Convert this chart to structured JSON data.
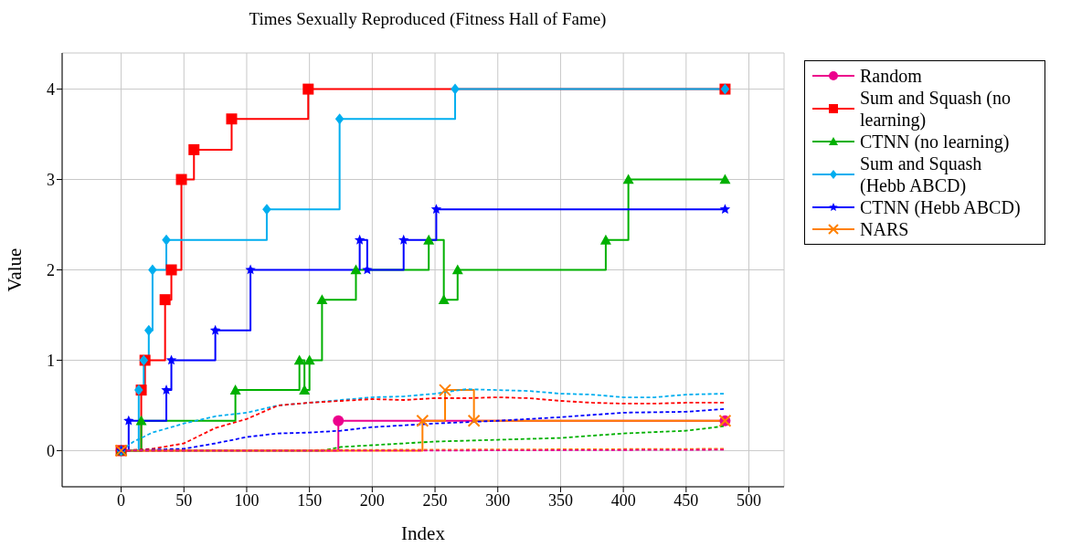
{
  "chart_data": {
    "type": "step",
    "title": "Times Sexually Reproduced (Fitness Hall of Fame)",
    "xlabel": "Index",
    "ylabel": "Value",
    "xlim": [
      -47,
      528
    ],
    "ylim": [
      -0.4,
      4.4
    ],
    "xticks": [
      0,
      50,
      100,
      150,
      200,
      250,
      300,
      350,
      400,
      450,
      500
    ],
    "yticks": [
      0,
      1,
      2,
      3,
      4
    ],
    "grid": true,
    "legend": "right",
    "series": [
      {
        "name": "Random",
        "color": "#ec008c",
        "marker": "circle",
        "x": [
          0,
          173,
          481
        ],
        "values": [
          0,
          0.33,
          0.33
        ]
      },
      {
        "name": "Sum and Squash (no learning)",
        "color": "#ff0000",
        "marker": "square",
        "x": [
          0,
          16,
          19,
          35,
          40,
          48,
          58,
          88,
          149,
          481
        ],
        "values": [
          0,
          0.67,
          1,
          1.67,
          2,
          3,
          3.33,
          3.67,
          4,
          4
        ]
      },
      {
        "name": "CTNN (no learning)",
        "color": "#00b000",
        "marker": "triangle",
        "x": [
          0,
          16,
          91,
          142,
          146,
          150,
          160,
          187,
          245,
          257,
          268,
          386,
          404,
          481
        ],
        "values": [
          0,
          0.33,
          0.67,
          1,
          0.67,
          1,
          1.67,
          2,
          2.33,
          1.67,
          2,
          2.33,
          3,
          3
        ]
      },
      {
        "name": "Sum and Squash (Hebb ABCD)",
        "color": "#00aeef",
        "marker": "diamond",
        "x": [
          0,
          14,
          18,
          22,
          25,
          36,
          116,
          174,
          266,
          481
        ],
        "values": [
          0,
          0.67,
          1,
          1.33,
          2,
          2.33,
          2.67,
          3.67,
          4,
          4
        ]
      },
      {
        "name": "CTNN (Hebb ABCD)",
        "color": "#0000ff",
        "marker": "star",
        "x": [
          0,
          6,
          36,
          40,
          75,
          103,
          190,
          196,
          225,
          251,
          481
        ],
        "values": [
          0,
          0.33,
          0.67,
          1,
          1.33,
          2,
          2.33,
          2,
          2.33,
          2.67,
          2.67
        ]
      },
      {
        "name": "NARS",
        "color": "#ff8000",
        "marker": "cross",
        "x": [
          0,
          240,
          258,
          281,
          481
        ],
        "values": [
          0,
          0.33,
          0.67,
          0.33,
          0.33
        ]
      },
      {
        "type": "line",
        "color": "#00aeef",
        "line_style": "dashed",
        "marker": "none",
        "x": [
          0,
          10,
          25,
          50,
          75,
          100,
          125,
          150,
          175,
          200,
          225,
          250,
          275,
          300,
          325,
          350,
          375,
          400,
          425,
          450,
          480
        ],
        "values": [
          0,
          0.1,
          0.2,
          0.3,
          0.38,
          0.42,
          0.5,
          0.53,
          0.56,
          0.59,
          0.6,
          0.63,
          0.68,
          0.67,
          0.66,
          0.63,
          0.62,
          0.59,
          0.59,
          0.62,
          0.63
        ]
      },
      {
        "type": "line",
        "color": "#ff0000",
        "line_style": "dashed",
        "marker": "none",
        "x": [
          0,
          25,
          50,
          75,
          100,
          125,
          150,
          175,
          200,
          225,
          250,
          275,
          300,
          325,
          350,
          375,
          400,
          425,
          450,
          480
        ],
        "values": [
          0,
          0.02,
          0.08,
          0.25,
          0.35,
          0.5,
          0.53,
          0.55,
          0.57,
          0.56,
          0.58,
          0.58,
          0.59,
          0.58,
          0.55,
          0.53,
          0.52,
          0.52,
          0.53,
          0.53
        ]
      },
      {
        "type": "line",
        "color": "#0000ff",
        "line_style": "dashed",
        "marker": "none",
        "x": [
          0,
          50,
          75,
          100,
          125,
          150,
          175,
          200,
          250,
          300,
          350,
          400,
          450,
          480
        ],
        "values": [
          0,
          0.02,
          0.08,
          0.15,
          0.19,
          0.2,
          0.22,
          0.26,
          0.3,
          0.33,
          0.37,
          0.42,
          0.43,
          0.46
        ]
      },
      {
        "type": "line",
        "color": "#00b000",
        "line_style": "dashed",
        "marker": "none",
        "x": [
          0,
          160,
          175,
          200,
          250,
          300,
          350,
          400,
          450,
          480
        ],
        "values": [
          0,
          0,
          0.04,
          0.06,
          0.1,
          0.12,
          0.14,
          0.19,
          0.22,
          0.27
        ]
      },
      {
        "type": "line",
        "color": "#ff8000",
        "line_style": "dashed",
        "marker": "none",
        "x": [
          0,
          240,
          480
        ],
        "values": [
          0,
          0.01,
          0.02
        ]
      },
      {
        "type": "line",
        "color": "#ec008c",
        "line_style": "dashed",
        "marker": "none",
        "x": [
          0,
          240,
          480
        ],
        "values": [
          0,
          0,
          0.01
        ]
      }
    ]
  }
}
